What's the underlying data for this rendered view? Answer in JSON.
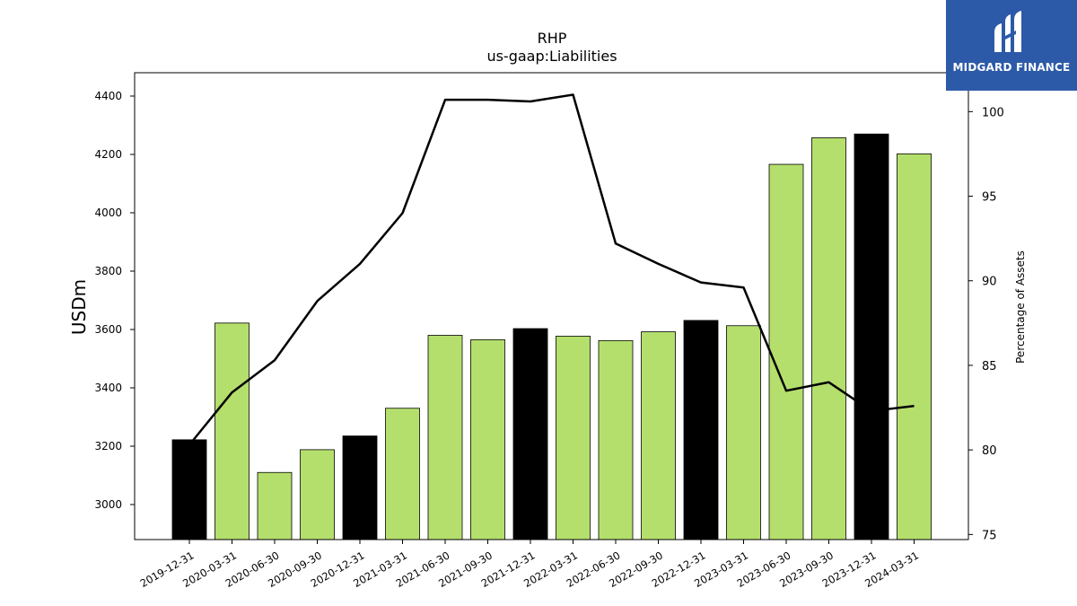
{
  "chart_data": {
    "type": "bar+line",
    "title": "RHP",
    "subtitle": "us-gaap:Liabilities",
    "ylabel": "USDm",
    "y2label": "Percentage of Assets",
    "ylim": [
      2880,
      4480
    ],
    "y2lim": [
      74.7,
      102.3
    ],
    "yticks": [
      3000,
      3200,
      3400,
      3600,
      3800,
      4000,
      4200,
      4400
    ],
    "y2ticks": [
      75,
      80,
      85,
      90,
      95,
      100
    ],
    "categories": [
      "2019-12-31",
      "2020-03-31",
      "2020-06-30",
      "2020-09-30",
      "2020-12-31",
      "2021-03-31",
      "2021-06-30",
      "2021-09-30",
      "2021-12-31",
      "2022-03-31",
      "2022-06-30",
      "2022-09-30",
      "2022-12-31",
      "2023-03-31",
      "2023-06-30",
      "2023-09-30",
      "2023-12-31",
      "2024-03-31"
    ],
    "bars": [
      3222,
      3622,
      3110,
      3188,
      3235,
      3330,
      3580,
      3565,
      3603,
      3577,
      3562,
      3592,
      3631,
      3613,
      4166,
      4257,
      4270,
      4202
    ],
    "bar_colors": [
      "#000000",
      "#b5df6d",
      "#b5df6d",
      "#b5df6d",
      "#000000",
      "#b5df6d",
      "#b5df6d",
      "#b5df6d",
      "#000000",
      "#b5df6d",
      "#b5df6d",
      "#b5df6d",
      "#000000",
      "#b5df6d",
      "#b5df6d",
      "#b5df6d",
      "#000000",
      "#b5df6d"
    ],
    "line_values": [
      80.3,
      83.4,
      85.3,
      88.8,
      91.0,
      94.0,
      100.7,
      100.7,
      100.6,
      101.0,
      92.2,
      91.0,
      89.9,
      89.6,
      83.5,
      84.0,
      82.3,
      82.6
    ],
    "line_color": "#000000",
    "grid": false
  },
  "logo": {
    "text": "MIDGARD FINANCE",
    "bg": "#2d5aa8"
  }
}
